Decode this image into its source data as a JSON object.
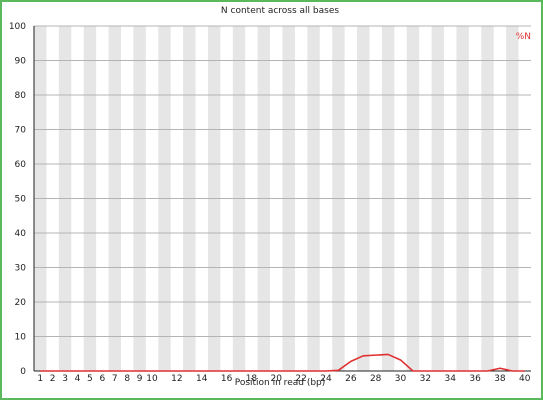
{
  "chart_data": {
    "type": "line",
    "title": "N content across all bases",
    "xlabel": "Position in read (bp)",
    "ylabel": "",
    "ylim": [
      0,
      100
    ],
    "yticks": [
      0,
      10,
      20,
      30,
      40,
      50,
      60,
      70,
      80,
      90,
      100
    ],
    "categories": [
      "1",
      "2",
      "3",
      "4",
      "5",
      "6",
      "7",
      "8",
      "9",
      "10",
      "11",
      "12",
      "13",
      "14",
      "15",
      "16",
      "17",
      "18",
      "19",
      "20",
      "21",
      "22",
      "23",
      "24",
      "25",
      "26",
      "27",
      "28",
      "29",
      "30",
      "31",
      "32",
      "33",
      "34",
      "35",
      "36",
      "37",
      "38",
      "39",
      "40"
    ],
    "tick_labels": [
      "1",
      "2",
      "3",
      "4",
      "5",
      "6",
      "7",
      "8",
      "9",
      "10",
      "",
      "12",
      "",
      "14",
      "",
      "16",
      "",
      "18",
      "",
      "20",
      "",
      "22",
      "",
      "24",
      "",
      "26",
      "",
      "28",
      "",
      "30",
      "",
      "32",
      "",
      "34",
      "",
      "36",
      "",
      "38",
      "",
      "40"
    ],
    "grid": true,
    "legend_position": "top-right",
    "series": [
      {
        "name": "%N",
        "color": "#e03030",
        "values": [
          0,
          0,
          0,
          0,
          0,
          0,
          0,
          0,
          0,
          0,
          0,
          0,
          0,
          0,
          0,
          0,
          0,
          0,
          0,
          0,
          0,
          0,
          0,
          0,
          0.2,
          2.8,
          4.4,
          4.6,
          4.8,
          3.2,
          0,
          0,
          0,
          0,
          0,
          0,
          0,
          0.8,
          0,
          0
        ]
      }
    ]
  }
}
